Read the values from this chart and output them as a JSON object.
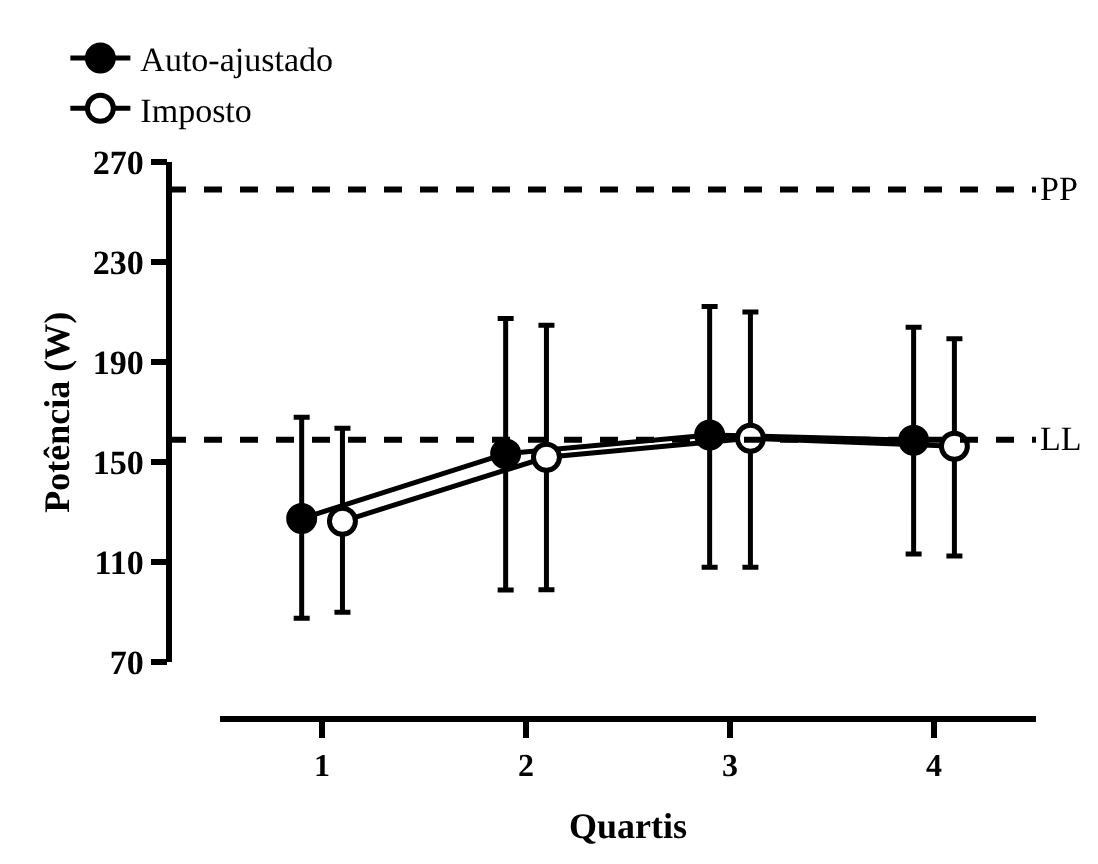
{
  "chart_data": {
    "type": "line",
    "xlabel": "Quartis",
    "ylabel": "Potência (W)",
    "xlim": [
      0.5,
      4.5
    ],
    "xticks": [
      1,
      2,
      3,
      4
    ],
    "ylim": [
      70,
      270
    ],
    "yticks": [
      70,
      110,
      150,
      190,
      230,
      270
    ],
    "series": [
      {
        "name": "Auto-ajustado",
        "color": "#000000",
        "marker": "circle",
        "x": [
          0.9,
          1.9,
          2.9,
          3.9
        ],
        "values": [
          127.5,
          153.4,
          160.9,
          158.8
        ],
        "errors": [
          [
            87.6,
            168
          ],
          [
            98.9,
            207.4
          ],
          [
            108,
            212.2
          ],
          [
            113.3,
            204
          ]
        ]
      },
      {
        "name": "Imposto",
        "color": "#ffffff",
        "marker": "circle",
        "x": [
          1.1,
          2.1,
          3.1,
          4.1
        ],
        "values": [
          126.4,
          152,
          159.6,
          156.4
        ],
        "errors": [
          [
            90,
            163.6
          ],
          [
            99,
            204.8
          ],
          [
            108,
            210
          ],
          [
            112.5,
            199.4
          ]
        ]
      }
    ],
    "ref_lines": [
      {
        "axis": "y",
        "value": 259,
        "label": "PP",
        "color": "#000000",
        "line_style": "dashed"
      },
      {
        "axis": "y",
        "value": 159,
        "label": "LL",
        "color": "#000000",
        "line_style": "dashed"
      }
    ],
    "legend": "top left"
  }
}
